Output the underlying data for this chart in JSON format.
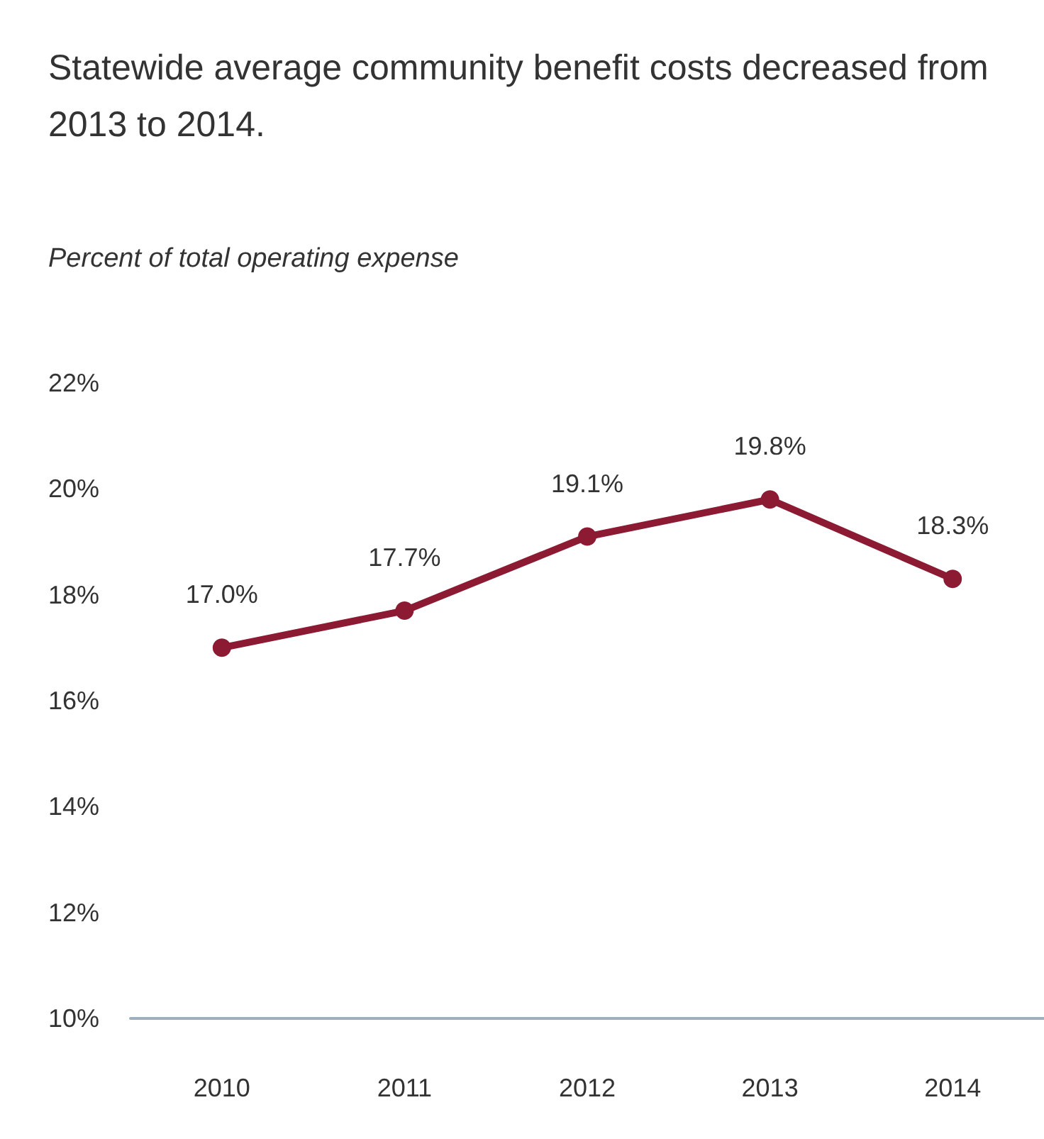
{
  "chart_data": {
    "type": "line",
    "title": "Statewide average community benefit costs decreased from 2013 to 2014.",
    "subtitle": "Percent of total operating expense",
    "categories": [
      "2010",
      "2011",
      "2012",
      "2013",
      "2014"
    ],
    "series": [
      {
        "color": "#8b1a32",
        "values": [
          17.0,
          17.7,
          19.1,
          19.8,
          18.3
        ],
        "value_labels": [
          "17.0%",
          "17.7%",
          "19.1%",
          "19.8%",
          "18.3%"
        ]
      }
    ],
    "ylim": [
      10,
      22
    ],
    "yticks": [
      {
        "value": 10,
        "label": "10%"
      },
      {
        "value": 12,
        "label": "12%"
      },
      {
        "value": 14,
        "label": "14%"
      },
      {
        "value": 16,
        "label": "16%"
      },
      {
        "value": 18,
        "label": "18%"
      },
      {
        "value": 20,
        "label": "20%"
      },
      {
        "value": 22,
        "label": "22%"
      }
    ],
    "grid": false,
    "marker": "circle",
    "line_style": "solid"
  }
}
